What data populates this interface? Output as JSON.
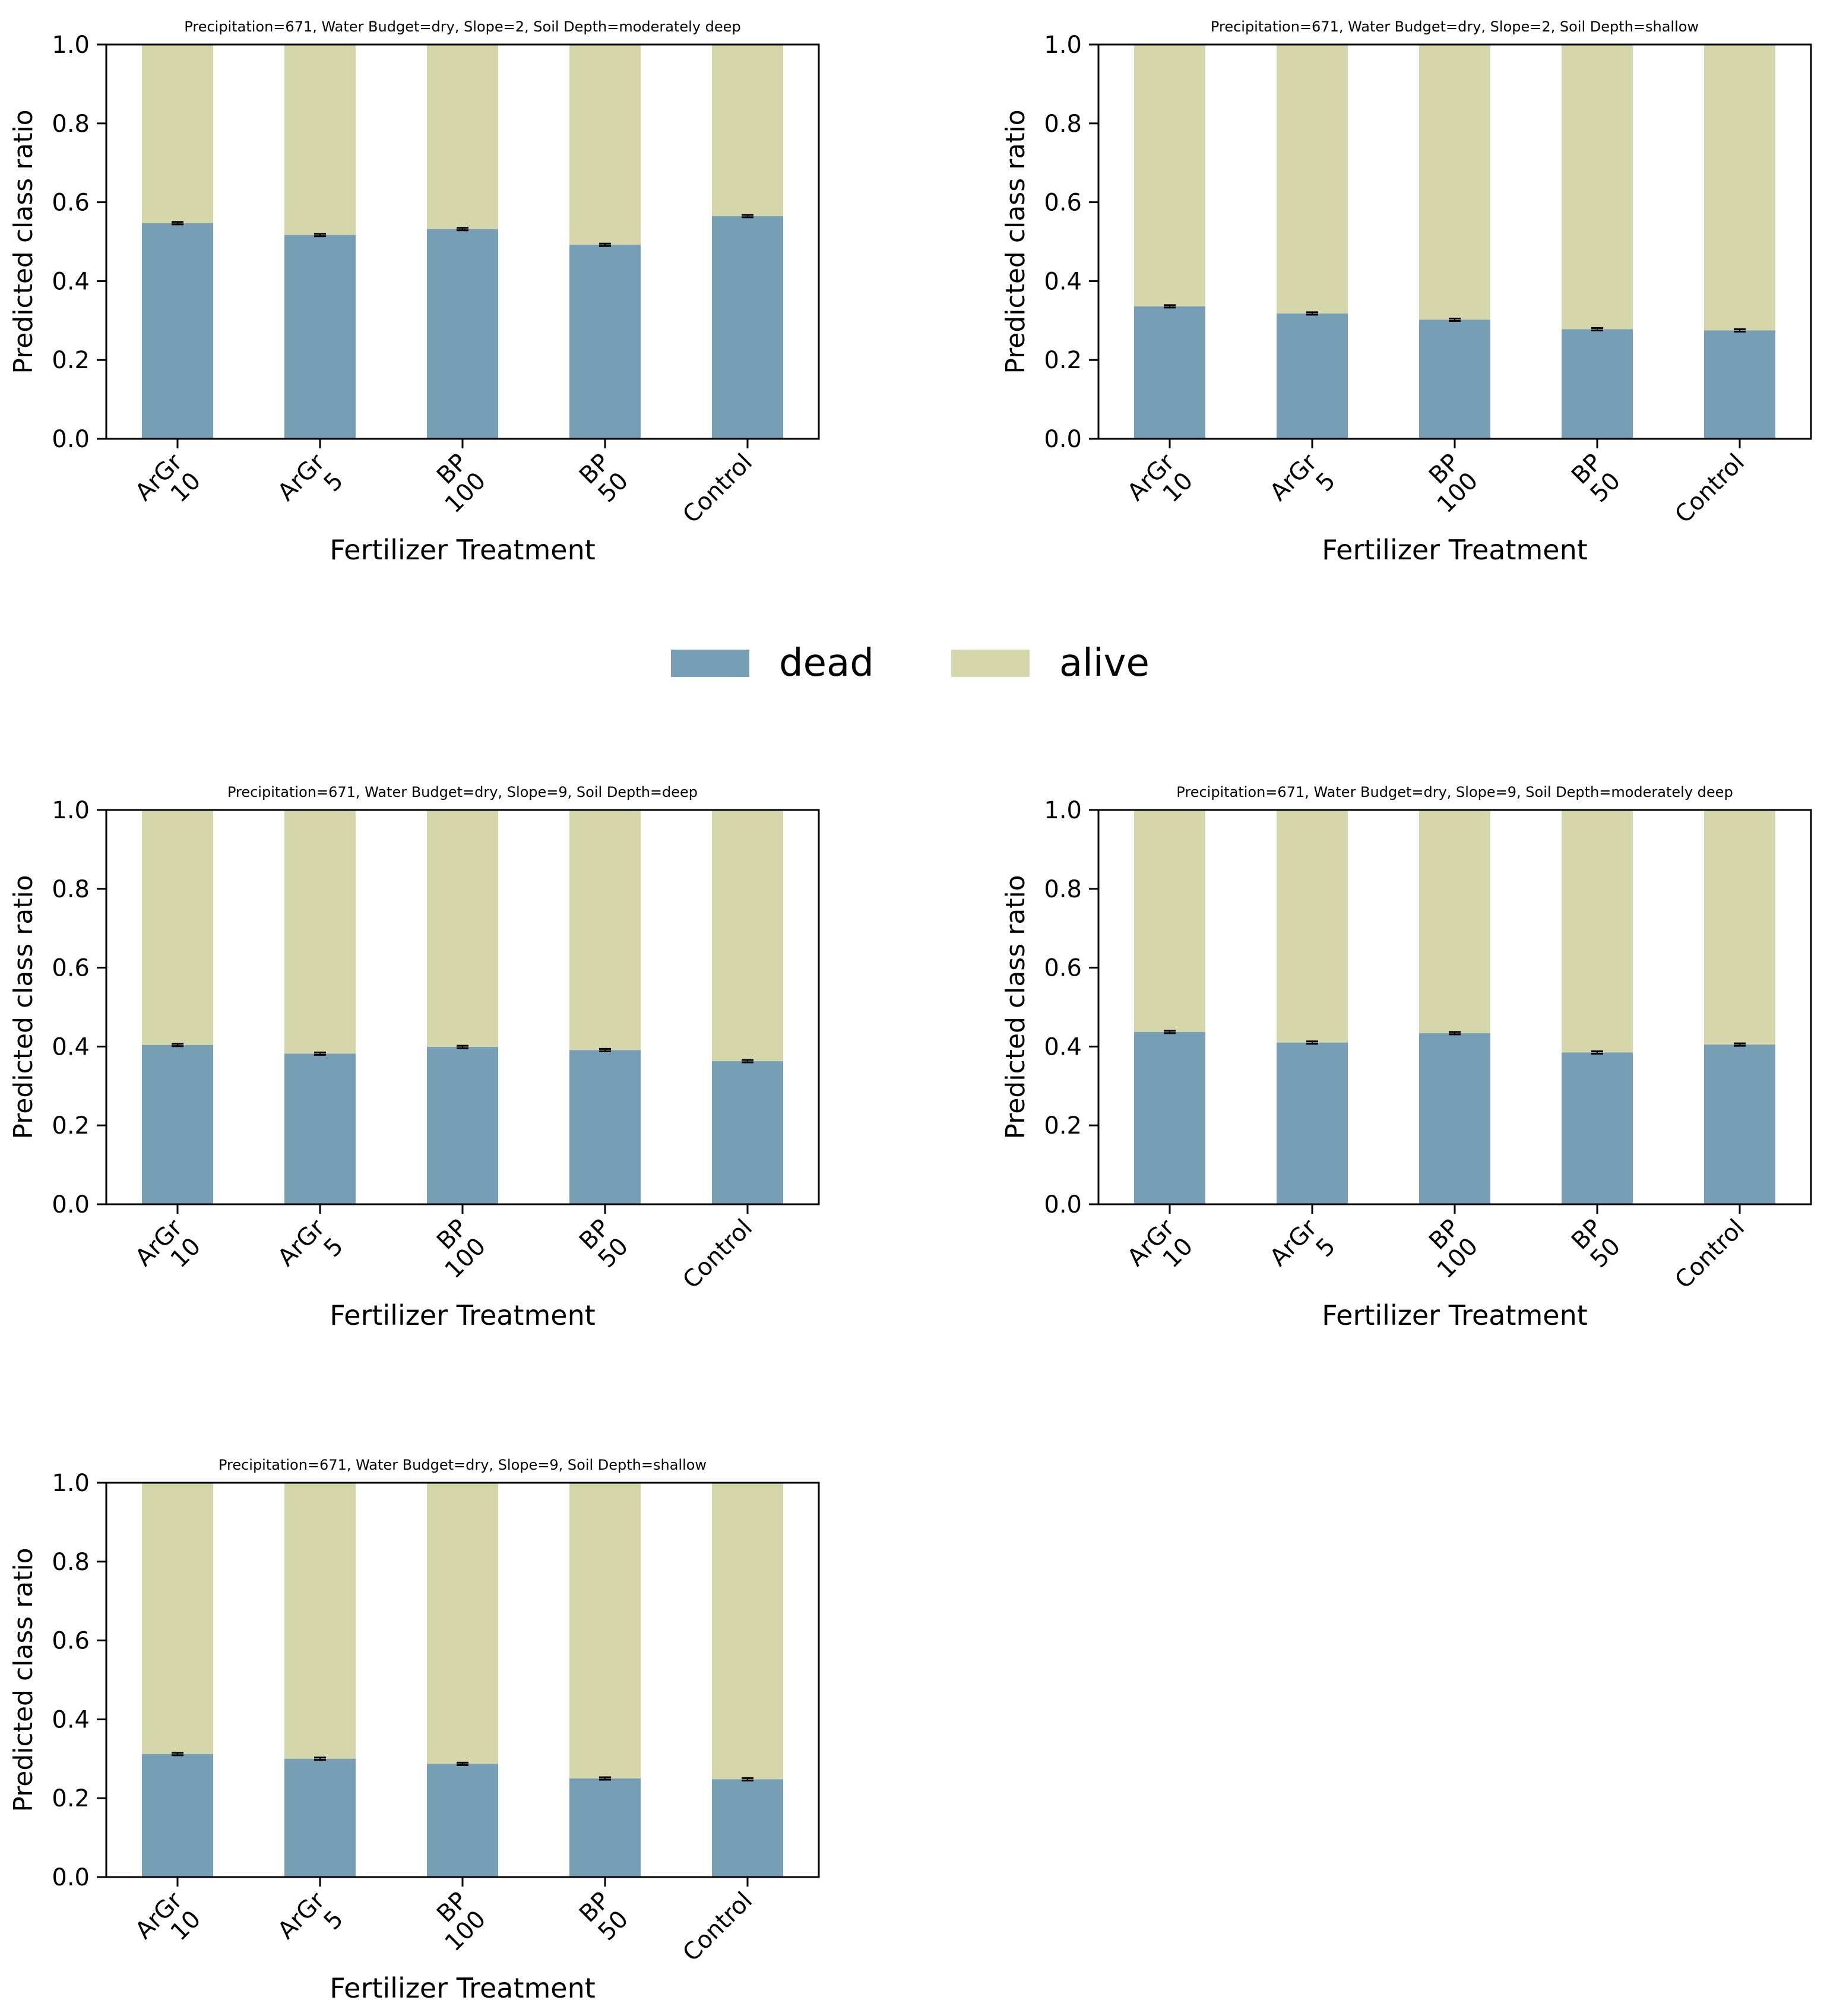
{
  "colors": {
    "dead": "#769FB6",
    "alive": "#D5D6AA",
    "axis": "#000000",
    "error": "#000000"
  },
  "legend": {
    "items": [
      {
        "label": "dead",
        "color": "#769FB6"
      },
      {
        "label": "alive",
        "color": "#D5D6AA"
      }
    ]
  },
  "chart_data": [
    {
      "type": "bar",
      "stacked": true,
      "title": "Precipitation=671, Water Budget=dry, Slope=2, Soil Depth=moderately deep",
      "xlabel": "Fertilizer Treatment",
      "ylabel": "Predicted class ratio",
      "ylim": [
        0,
        1
      ],
      "yticks": [
        "0.0",
        "0.2",
        "0.4",
        "0.6",
        "0.8",
        "1.0"
      ],
      "categories": [
        [
          "ArGr",
          "10"
        ],
        [
          "ArGr",
          "5"
        ],
        [
          "BP",
          "100"
        ],
        [
          "BP",
          "50"
        ],
        [
          "Control"
        ]
      ],
      "series": [
        {
          "name": "dead",
          "values": [
            0.547,
            0.517,
            0.532,
            0.492,
            0.565
          ]
        },
        {
          "name": "alive",
          "values": [
            0.453,
            0.483,
            0.468,
            0.508,
            0.435
          ]
        }
      ]
    },
    {
      "type": "bar",
      "stacked": true,
      "title": "Precipitation=671, Water Budget=dry, Slope=2, Soil Depth=shallow",
      "xlabel": "Fertilizer Treatment",
      "ylabel": "Predicted class ratio",
      "ylim": [
        0,
        1
      ],
      "yticks": [
        "0.0",
        "0.2",
        "0.4",
        "0.6",
        "0.8",
        "1.0"
      ],
      "categories": [
        [
          "ArGr",
          "10"
        ],
        [
          "ArGr",
          "5"
        ],
        [
          "BP",
          "100"
        ],
        [
          "BP",
          "50"
        ],
        [
          "Control"
        ]
      ],
      "series": [
        {
          "name": "dead",
          "values": [
            0.336,
            0.318,
            0.302,
            0.278,
            0.275
          ]
        },
        {
          "name": "alive",
          "values": [
            0.664,
            0.682,
            0.698,
            0.722,
            0.725
          ]
        }
      ]
    },
    {
      "type": "bar",
      "stacked": true,
      "title": "Precipitation=671, Water Budget=dry, Slope=9, Soil Depth=deep",
      "xlabel": "Fertilizer Treatment",
      "ylabel": "Predicted class ratio",
      "ylim": [
        0,
        1
      ],
      "yticks": [
        "0.0",
        "0.2",
        "0.4",
        "0.6",
        "0.8",
        "1.0"
      ],
      "categories": [
        [
          "ArGr",
          "10"
        ],
        [
          "ArGr",
          "5"
        ],
        [
          "BP",
          "100"
        ],
        [
          "BP",
          "50"
        ],
        [
          "Control"
        ]
      ],
      "series": [
        {
          "name": "dead",
          "values": [
            0.404,
            0.382,
            0.399,
            0.391,
            0.363
          ]
        },
        {
          "name": "alive",
          "values": [
            0.596,
            0.618,
            0.601,
            0.609,
            0.637
          ]
        }
      ]
    },
    {
      "type": "bar",
      "stacked": true,
      "title": "Precipitation=671, Water Budget=dry, Slope=9, Soil Depth=moderately deep",
      "xlabel": "Fertilizer Treatment",
      "ylabel": "Predicted class ratio",
      "ylim": [
        0,
        1
      ],
      "yticks": [
        "0.0",
        "0.2",
        "0.4",
        "0.6",
        "0.8",
        "1.0"
      ],
      "categories": [
        [
          "ArGr",
          "10"
        ],
        [
          "ArGr",
          "5"
        ],
        [
          "BP",
          "100"
        ],
        [
          "BP",
          "50"
        ],
        [
          "Control"
        ]
      ],
      "series": [
        {
          "name": "dead",
          "values": [
            0.437,
            0.41,
            0.434,
            0.385,
            0.405
          ]
        },
        {
          "name": "alive",
          "values": [
            0.563,
            0.59,
            0.566,
            0.615,
            0.595
          ]
        }
      ]
    },
    {
      "type": "bar",
      "stacked": true,
      "title": "Precipitation=671, Water Budget=dry, Slope=9, Soil Depth=shallow",
      "xlabel": "Fertilizer Treatment",
      "ylabel": "Predicted class ratio",
      "ylim": [
        0,
        1
      ],
      "yticks": [
        "0.0",
        "0.2",
        "0.4",
        "0.6",
        "0.8",
        "1.0"
      ],
      "categories": [
        [
          "ArGr",
          "10"
        ],
        [
          "ArGr",
          "5"
        ],
        [
          "BP",
          "100"
        ],
        [
          "BP",
          "50"
        ],
        [
          "Control"
        ]
      ],
      "series": [
        {
          "name": "dead",
          "values": [
            0.312,
            0.3,
            0.287,
            0.25,
            0.248
          ]
        },
        {
          "name": "alive",
          "values": [
            0.688,
            0.7,
            0.713,
            0.75,
            0.752
          ]
        }
      ]
    }
  ]
}
